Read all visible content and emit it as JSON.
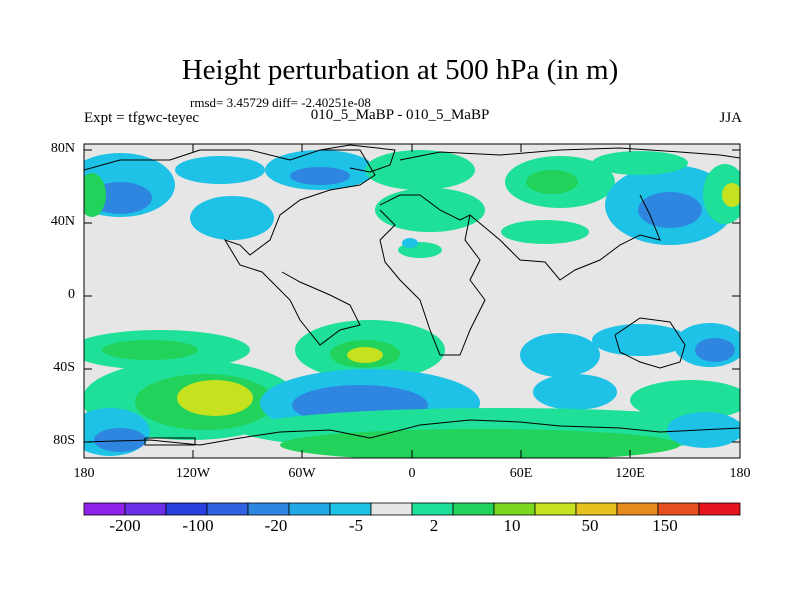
{
  "title": "Height perturbation at 500 hPa (in m)",
  "stats": "rmsd= 3.45729 diff= -2.40251e-08",
  "left_label": "Expt = tfgwc-teyec",
  "center_label": "010_5_MaBP - 010_5_MaBP",
  "right_label": "JJA",
  "lat_ticks": [
    "80N",
    "40N",
    "0",
    "40S",
    "80S"
  ],
  "lon_ticks": [
    "180",
    "120W",
    "60W",
    "0",
    "60E",
    "120E",
    "180"
  ],
  "colorbar": {
    "colors": [
      "#8f22e6",
      "#6a2fe6",
      "#2a3fe0",
      "#2f62e0",
      "#2f86e0",
      "#23a8e6",
      "#1ec2e6",
      "#e6e6e6",
      "#1ee098",
      "#22d25a",
      "#7ad81e",
      "#c6e21e",
      "#e6c21e",
      "#e68a1e",
      "#e6501e",
      "#e6141e"
    ],
    "labels": [
      "-200",
      "-100",
      "-20",
      "-5",
      "2",
      "10",
      "50",
      "150"
    ]
  },
  "map_colors": {
    "background": "#e6e6e6",
    "light_blue": "#1ec2e6",
    "mid_blue": "#23a8e6",
    "blue": "#2f86e0",
    "green": "#1ee098",
    "lime": "#7ad81e",
    "yellow_green": "#c6e21e"
  }
}
